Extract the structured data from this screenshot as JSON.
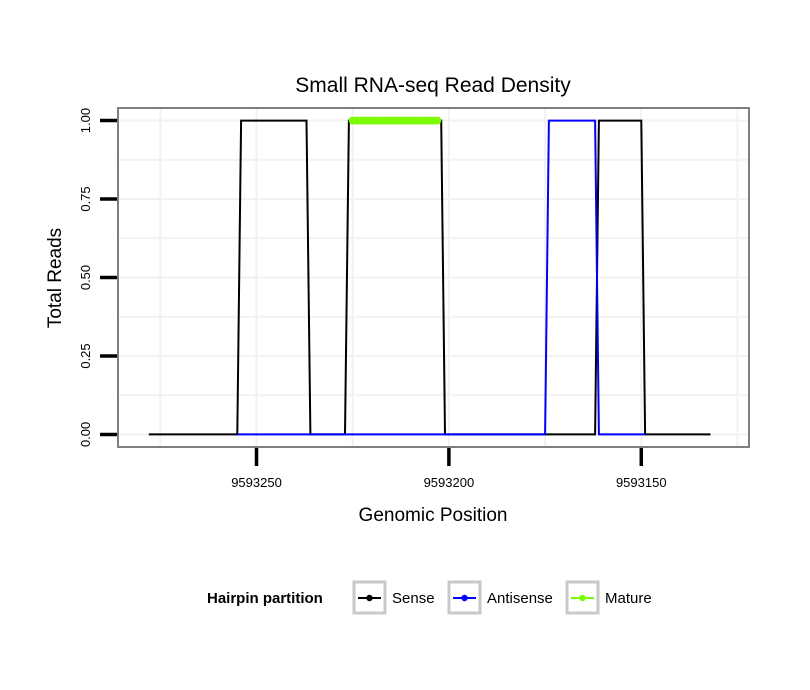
{
  "chart_data": {
    "type": "line",
    "title": "Small RNA-seq Read Density",
    "xlabel": "Genomic Position",
    "ylabel": "Total Reads",
    "xlim": [
      9593286,
      9593122
    ],
    "x_reversed": true,
    "ylim": [
      -0.04,
      1.04
    ],
    "xticks": [
      9593250,
      9593200,
      9593150
    ],
    "xtick_labels": [
      "9593250",
      "9593200",
      "9593150"
    ],
    "yticks": [
      0,
      0.25,
      0.5,
      0.75,
      1.0
    ],
    "ytick_labels": [
      "0.00",
      "0.25",
      "0.50",
      "0.75",
      "1.00"
    ],
    "grid": true,
    "legend": {
      "title": "Hairpin partition",
      "position": "bottom"
    },
    "series": [
      {
        "name": "Sense",
        "color": "#000000",
        "x": [
          9593278,
          9593255,
          9593254,
          9593237,
          9593236,
          9593227,
          9593226,
          9593202,
          9593201,
          9593162,
          9593161,
          9593150,
          9593149,
          9593132
        ],
        "y": [
          0,
          0,
          1,
          1,
          0,
          0,
          1,
          1,
          0,
          0,
          1,
          1,
          0,
          0
        ]
      },
      {
        "name": "Antisense",
        "color": "#0000ff",
        "x": [
          9593255,
          9593175,
          9593174,
          9593162,
          9593161,
          9593149
        ],
        "y": [
          0,
          0,
          1,
          1,
          0,
          0
        ]
      },
      {
        "name": "Mature",
        "color": "#7cfc00",
        "x": [
          9593225,
          9593203
        ],
        "y": [
          1,
          1
        ]
      }
    ]
  }
}
